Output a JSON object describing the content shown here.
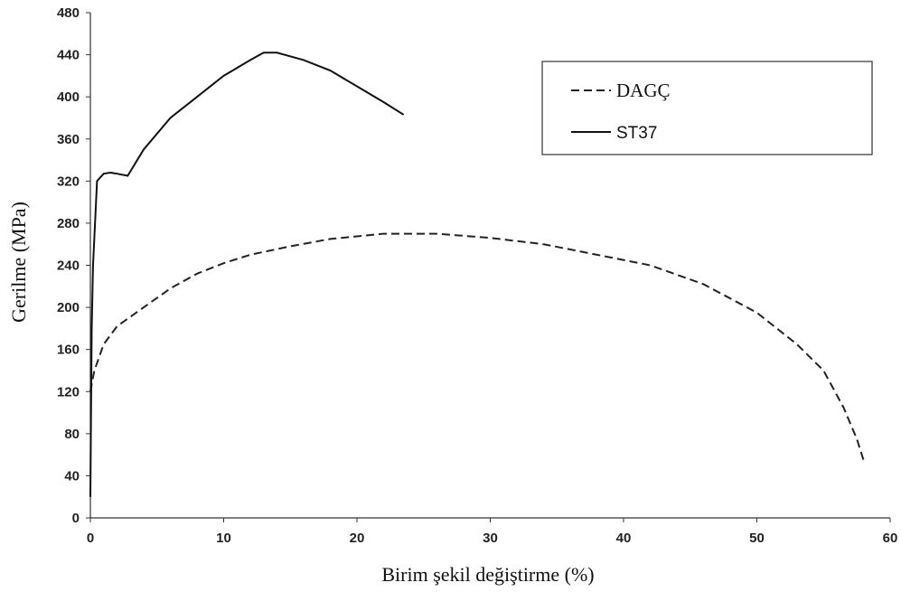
{
  "chart_data": {
    "type": "line",
    "x_label": "Birim şekil değiştirme (%)",
    "y_label": "Gerilme (MPa)",
    "xlim": [
      0,
      60
    ],
    "xticks": [
      0,
      10,
      20,
      30,
      40,
      50,
      60
    ],
    "ylim": [
      0,
      480
    ],
    "yticks": [
      0,
      40,
      80,
      120,
      160,
      200,
      240,
      280,
      320,
      360,
      400,
      440,
      480
    ],
    "legend": "upper right",
    "series": [
      {
        "name": "DAGÇ",
        "color": "#222222",
        "linestyle": "dashed",
        "x": [
          0,
          0.3,
          1,
          2,
          4,
          6,
          8,
          10,
          12,
          15,
          18,
          22,
          26,
          30,
          34,
          38,
          42,
          46,
          50,
          53,
          55,
          56.5,
          57.5,
          58
        ],
        "values": [
          120,
          140,
          165,
          182,
          200,
          218,
          232,
          242,
          250,
          258,
          265,
          270,
          270,
          266,
          260,
          250,
          240,
          222,
          195,
          165,
          140,
          105,
          75,
          55
        ]
      },
      {
        "name": "ST37",
        "color": "#111111",
        "linestyle": "solid",
        "x": [
          0,
          0.1,
          0.2,
          0.5,
          1,
          1.5,
          2,
          2.8,
          4,
          6,
          8,
          10,
          12,
          13,
          14,
          16,
          18,
          20,
          22,
          23.5
        ],
        "values": [
          20,
          180,
          240,
          320,
          327,
          328,
          327,
          325,
          350,
          380,
          400,
          420,
          435,
          442,
          442,
          435,
          425,
          410,
          395,
          383
        ]
      }
    ]
  }
}
